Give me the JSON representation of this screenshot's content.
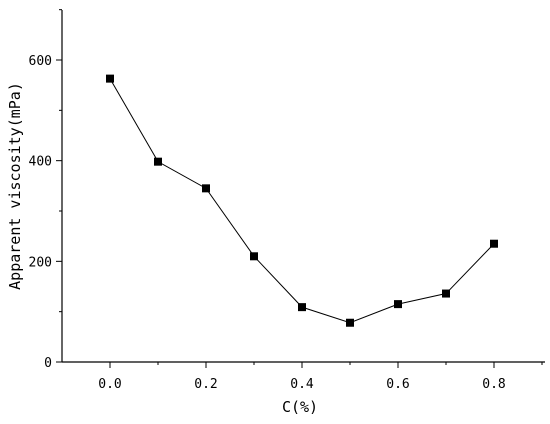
{
  "chart_data": {
    "type": "line",
    "xlabel": "C(%)",
    "ylabel": "Apparent viscosity(mPa)",
    "xlim": [
      -0.1,
      0.9
    ],
    "ylim": [
      0,
      700
    ],
    "x_ticks": [
      0.0,
      0.2,
      0.4,
      0.6,
      0.8
    ],
    "x_tick_labels": [
      "0.0",
      "0.2",
      "0.4",
      "0.6",
      "0.8"
    ],
    "y_ticks": [
      0,
      200,
      400,
      600
    ],
    "y_tick_labels": [
      "0",
      "200",
      "400",
      "600"
    ],
    "grid": false,
    "legend": false,
    "series": [
      {
        "x": [
          0.0,
          0.1,
          0.2,
          0.3,
          0.4,
          0.5,
          0.6,
          0.7,
          0.8
        ],
        "y": [
          563,
          398,
          345,
          210,
          109,
          78,
          115,
          136,
          235
        ],
        "marker": "square",
        "color": "#000000"
      }
    ]
  }
}
